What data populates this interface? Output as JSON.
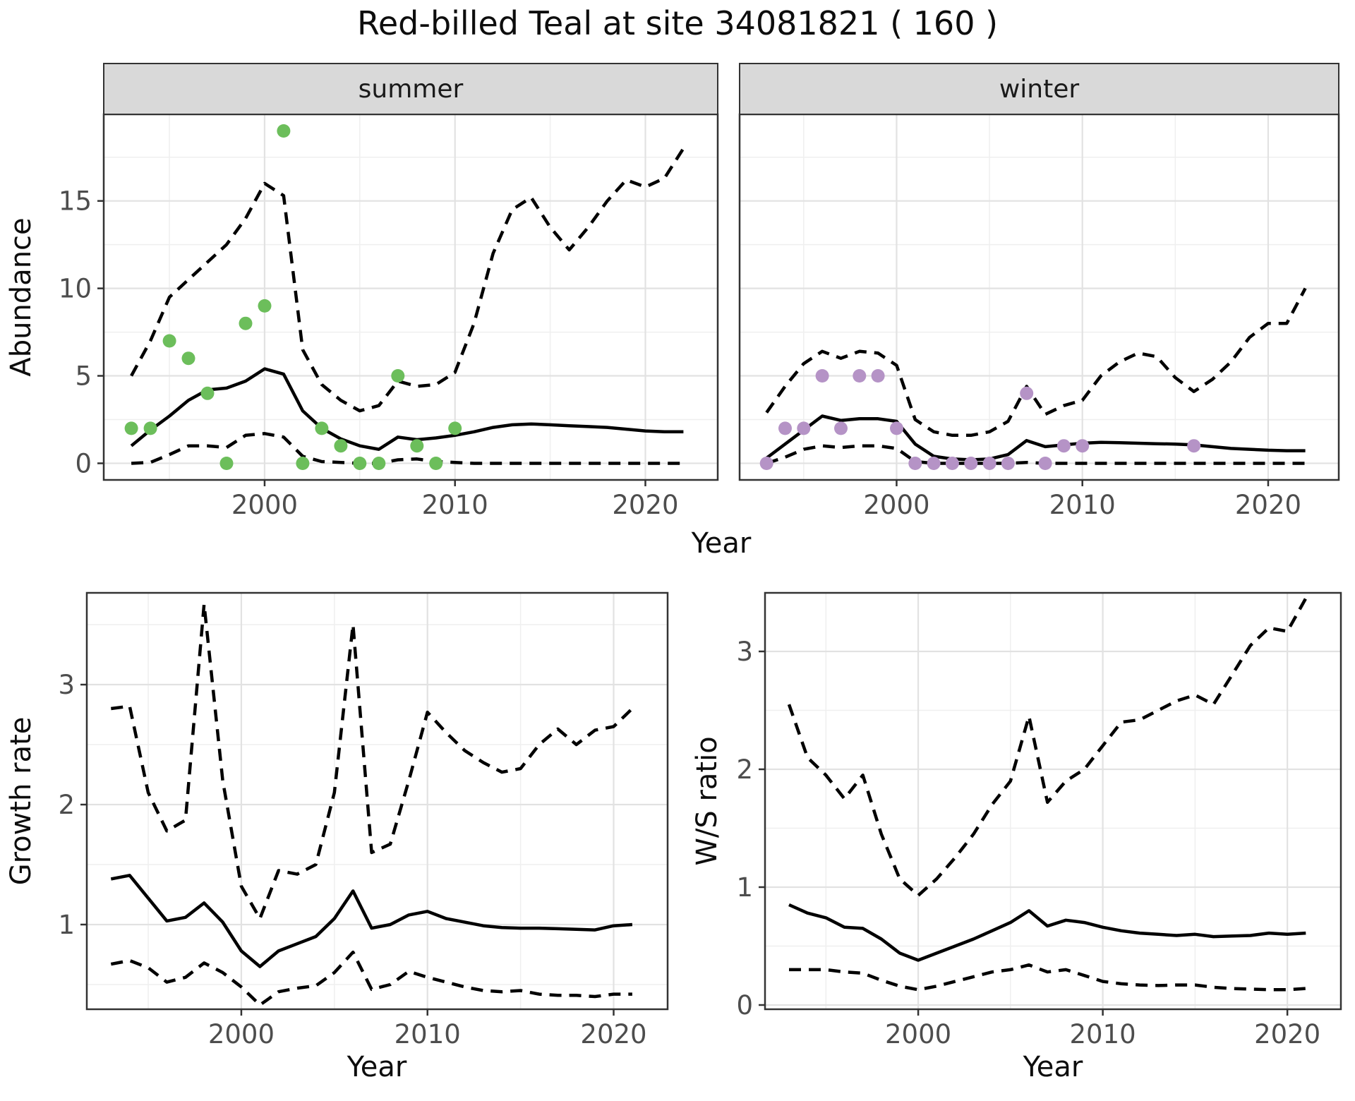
{
  "title": "Red-billed Teal at site 34081821 ( 160 )",
  "labels": {
    "year": "Year",
    "abundance": "Abundance",
    "growth_rate": "Growth rate",
    "ws_ratio": "W/S ratio"
  },
  "facets": {
    "summer": "summer",
    "winter": "winter"
  },
  "colors": {
    "summer_point": "#6cbe5b",
    "winter_point": "#b593c6",
    "line": "#000000",
    "grid_major": "#e2e2e2",
    "grid_minor": "#efefef",
    "panel_border": "#333333",
    "strip_bg": "#d9d9d9",
    "tick_text": "#4d4d4d",
    "text": "#0d0d0d",
    "background": "#ffffff"
  },
  "chart_data": [
    {
      "id": "abundance_summer",
      "type": "line",
      "facet": "summer",
      "xlabel": "Year",
      "ylabel": "Abundance",
      "xlim": [
        1991.55,
        2023.8
      ],
      "ylim": [
        -0.95,
        19.95
      ],
      "xticks": [
        2000,
        2010,
        2020
      ],
      "xminor": [
        1995,
        2005,
        2015
      ],
      "yticks": [
        0,
        5,
        10,
        15
      ],
      "yminor": [
        2.5,
        7.5,
        12.5,
        17.5
      ],
      "show_y_axis": true,
      "legend": "none",
      "grid": true,
      "point_color": "#6cbe5b",
      "x": [
        1993,
        1994,
        1995,
        1996,
        1997,
        1998,
        1999,
        2000,
        2001,
        2002,
        2003,
        2004,
        2005,
        2006,
        2007,
        2008,
        2009,
        2010,
        2011,
        2012,
        2013,
        2014,
        2015,
        2016,
        2017,
        2018,
        2019,
        2020,
        2021,
        2022
      ],
      "series": [
        {
          "name": "upper_ci",
          "style": "dashed",
          "values": [
            5.0,
            7.0,
            9.5,
            10.5,
            11.5,
            12.5,
            14.0,
            16.0,
            15.3,
            6.5,
            4.5,
            3.6,
            3.0,
            3.3,
            4.7,
            4.4,
            4.5,
            5.2,
            8.0,
            12.0,
            14.5,
            15.2,
            13.5,
            12.2,
            13.5,
            15.0,
            16.2,
            15.8,
            16.3,
            18.0
          ]
        },
        {
          "name": "lower_ci",
          "style": "dashed",
          "values": [
            0,
            0.05,
            0.5,
            1.0,
            1.0,
            0.9,
            1.6,
            1.7,
            1.5,
            0.4,
            0.1,
            0.05,
            0,
            0,
            0.2,
            0.25,
            0.1,
            0.05,
            0,
            0,
            0,
            0,
            0,
            0,
            0,
            0,
            0,
            0,
            0,
            0
          ]
        },
        {
          "name": "median",
          "style": "solid",
          "values": [
            1.0,
            1.9,
            2.7,
            3.6,
            4.2,
            4.3,
            4.7,
            5.4,
            5.1,
            3.0,
            2.0,
            1.4,
            1.0,
            0.8,
            1.5,
            1.35,
            1.45,
            1.6,
            1.8,
            2.05,
            2.2,
            2.25,
            2.2,
            2.15,
            2.1,
            2.05,
            1.95,
            1.85,
            1.8,
            1.8
          ]
        }
      ],
      "points": [
        [
          1993,
          2
        ],
        [
          1994,
          2
        ],
        [
          1995,
          7
        ],
        [
          1996,
          6
        ],
        [
          1997,
          4
        ],
        [
          1998,
          0
        ],
        [
          1999,
          8
        ],
        [
          2000,
          9
        ],
        [
          2001,
          19
        ],
        [
          2002,
          0
        ],
        [
          2003,
          2
        ],
        [
          2004,
          1
        ],
        [
          2005,
          0
        ],
        [
          2006,
          0
        ],
        [
          2007,
          5
        ],
        [
          2008,
          1
        ],
        [
          2009,
          0
        ],
        [
          2010,
          2
        ]
      ]
    },
    {
      "id": "abundance_winter",
      "type": "line",
      "facet": "winter",
      "xlabel": "Year",
      "ylabel": "Abundance",
      "xlim": [
        1991.55,
        2023.8
      ],
      "ylim": [
        -0.95,
        19.95
      ],
      "xticks": [
        2000,
        2010,
        2020
      ],
      "xminor": [
        1995,
        2005,
        2015
      ],
      "yticks": [
        0,
        5,
        10,
        15
      ],
      "yminor": [
        2.5,
        7.5,
        12.5,
        17.5
      ],
      "show_y_axis": false,
      "legend": "none",
      "grid": true,
      "point_color": "#b593c6",
      "x": [
        1993,
        1994,
        1995,
        1996,
        1997,
        1998,
        1999,
        2000,
        2001,
        2002,
        2003,
        2004,
        2005,
        2006,
        2007,
        2008,
        2009,
        2010,
        2011,
        2012,
        2013,
        2014,
        2015,
        2016,
        2017,
        2018,
        2019,
        2020,
        2021,
        2022
      ],
      "series": [
        {
          "name": "upper_ci",
          "style": "dashed",
          "values": [
            2.9,
            4.4,
            5.7,
            6.4,
            6.0,
            6.4,
            6.3,
            5.6,
            2.5,
            1.8,
            1.6,
            1.6,
            1.8,
            2.4,
            4.4,
            2.8,
            3.3,
            3.6,
            5.0,
            5.8,
            6.3,
            6.1,
            4.9,
            4.1,
            4.8,
            5.8,
            7.2,
            8.0,
            8.0,
            10.0
          ]
        },
        {
          "name": "lower_ci",
          "style": "dashed",
          "values": [
            0,
            0.35,
            0.8,
            1.0,
            0.9,
            1.0,
            1.0,
            0.85,
            0.1,
            0,
            0,
            0,
            0,
            0,
            0.05,
            0,
            0,
            0,
            0,
            0,
            0,
            0,
            0,
            0,
            0,
            0,
            0,
            0,
            0,
            0
          ]
        },
        {
          "name": "median",
          "style": "solid",
          "values": [
            0.3,
            1.1,
            1.9,
            2.7,
            2.45,
            2.55,
            2.55,
            2.4,
            1.1,
            0.4,
            0.25,
            0.2,
            0.25,
            0.5,
            1.3,
            0.95,
            1.05,
            1.15,
            1.2,
            1.18,
            1.15,
            1.12,
            1.1,
            1.05,
            0.95,
            0.85,
            0.8,
            0.75,
            0.72,
            0.72
          ]
        }
      ],
      "points": [
        [
          1993,
          0
        ],
        [
          1994,
          2
        ],
        [
          1995,
          2
        ],
        [
          1996,
          5
        ],
        [
          1997,
          2
        ],
        [
          1998,
          5
        ],
        [
          1999,
          5
        ],
        [
          2000,
          2
        ],
        [
          2001,
          0
        ],
        [
          2002,
          0
        ],
        [
          2003,
          0
        ],
        [
          2004,
          0
        ],
        [
          2005,
          0
        ],
        [
          2006,
          0
        ],
        [
          2007,
          4
        ],
        [
          2008,
          0
        ],
        [
          2009,
          1
        ],
        [
          2010,
          1
        ],
        [
          2016,
          1
        ]
      ]
    },
    {
      "id": "growth_rate",
      "type": "line",
      "facet": null,
      "xlabel": "Year",
      "ylabel": "Growth rate",
      "xlim": [
        1991.7,
        2022.9
      ],
      "ylim": [
        0.294,
        3.765
      ],
      "xticks": [
        2000,
        2010,
        2020
      ],
      "xminor": [
        1995,
        2005,
        2015
      ],
      "yticks": [
        1,
        2,
        3
      ],
      "yminor": [
        0.5,
        1.5,
        2.5,
        3.5
      ],
      "show_y_axis": true,
      "legend": "none",
      "grid": true,
      "point_color": null,
      "x": [
        1993,
        1994,
        1995,
        1996,
        1997,
        1998,
        1999,
        2000,
        2001,
        2002,
        2003,
        2004,
        2005,
        2006,
        2007,
        2008,
        2009,
        2010,
        2011,
        2012,
        2013,
        2014,
        2015,
        2016,
        2017,
        2018,
        2019,
        2020,
        2021
      ],
      "series": [
        {
          "name": "upper_ci",
          "style": "dashed",
          "values": [
            2.8,
            2.82,
            2.1,
            1.78,
            1.87,
            3.67,
            2.2,
            1.32,
            1.05,
            1.45,
            1.42,
            1.5,
            2.1,
            3.5,
            1.6,
            1.67,
            2.2,
            2.77,
            2.6,
            2.45,
            2.35,
            2.27,
            2.3,
            2.5,
            2.63,
            2.5,
            2.62,
            2.65,
            2.8
          ]
        },
        {
          "name": "lower_ci",
          "style": "dashed",
          "values": [
            0.67,
            0.7,
            0.64,
            0.52,
            0.56,
            0.68,
            0.6,
            0.48,
            0.33,
            0.44,
            0.47,
            0.49,
            0.6,
            0.77,
            0.46,
            0.5,
            0.61,
            0.56,
            0.52,
            0.48,
            0.45,
            0.44,
            0.45,
            0.42,
            0.41,
            0.41,
            0.4,
            0.42,
            0.42
          ]
        },
        {
          "name": "median",
          "style": "solid",
          "values": [
            1.38,
            1.41,
            1.22,
            1.03,
            1.06,
            1.18,
            1.02,
            0.78,
            0.65,
            0.78,
            0.84,
            0.9,
            1.05,
            1.28,
            0.97,
            1.0,
            1.08,
            1.11,
            1.05,
            1.02,
            0.99,
            0.975,
            0.97,
            0.97,
            0.965,
            0.96,
            0.955,
            0.99,
            1.0
          ]
        }
      ],
      "points": []
    },
    {
      "id": "ws_ratio",
      "type": "line",
      "facet": null,
      "xlabel": "Year",
      "ylabel": "W/S ratio",
      "xlim": [
        1991.7,
        2022.9
      ],
      "ylim": [
        -0.036,
        3.497
      ],
      "xticks": [
        2000,
        2010,
        2020
      ],
      "xminor": [
        1995,
        2005,
        2015
      ],
      "yticks": [
        0,
        1,
        2,
        3
      ],
      "yminor": [
        0.5,
        1.5,
        2.5
      ],
      "show_y_axis": true,
      "legend": "none",
      "grid": true,
      "point_color": null,
      "x": [
        1993,
        1994,
        1995,
        1996,
        1997,
        1998,
        1999,
        2000,
        2001,
        2002,
        2003,
        2004,
        2005,
        2006,
        2007,
        2008,
        2009,
        2010,
        2011,
        2012,
        2013,
        2014,
        2015,
        2016,
        2017,
        2018,
        2019,
        2020,
        2021
      ],
      "series": [
        {
          "name": "upper_ci",
          "style": "dashed",
          "values": [
            2.55,
            2.1,
            1.95,
            1.75,
            1.95,
            1.45,
            1.07,
            0.93,
            1.07,
            1.25,
            1.45,
            1.7,
            1.9,
            2.45,
            1.72,
            1.9,
            2.0,
            2.2,
            2.4,
            2.42,
            2.5,
            2.58,
            2.63,
            2.55,
            2.8,
            3.05,
            3.2,
            3.17,
            3.45
          ]
        },
        {
          "name": "lower_ci",
          "style": "dashed",
          "values": [
            0.3,
            0.3,
            0.3,
            0.28,
            0.27,
            0.21,
            0.16,
            0.13,
            0.16,
            0.2,
            0.24,
            0.28,
            0.3,
            0.34,
            0.28,
            0.3,
            0.25,
            0.2,
            0.18,
            0.17,
            0.165,
            0.17,
            0.17,
            0.15,
            0.14,
            0.135,
            0.13,
            0.13,
            0.14
          ]
        },
        {
          "name": "median",
          "style": "solid",
          "values": [
            0.85,
            0.78,
            0.74,
            0.66,
            0.65,
            0.56,
            0.44,
            0.38,
            0.44,
            0.5,
            0.56,
            0.63,
            0.7,
            0.8,
            0.67,
            0.72,
            0.7,
            0.66,
            0.63,
            0.61,
            0.6,
            0.59,
            0.6,
            0.58,
            0.585,
            0.59,
            0.61,
            0.6,
            0.61
          ]
        }
      ],
      "points": []
    }
  ]
}
